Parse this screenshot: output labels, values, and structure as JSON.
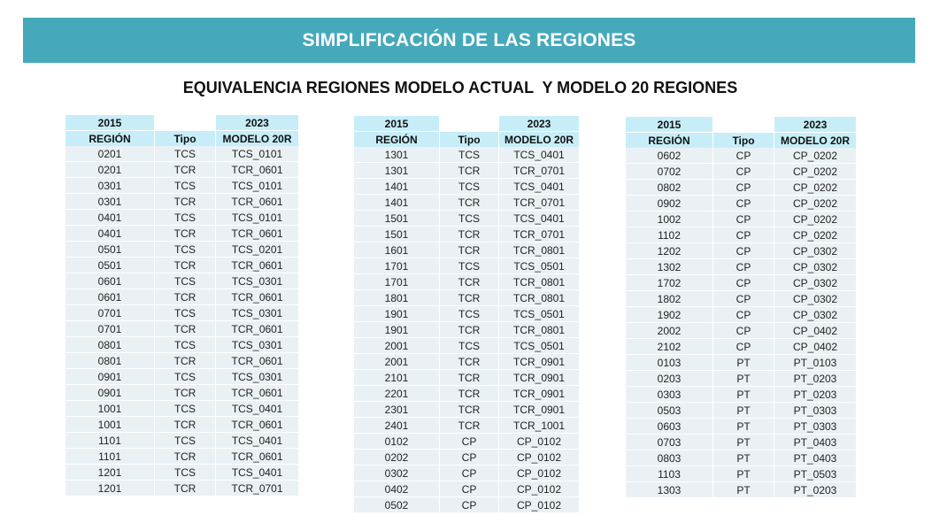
{
  "header": {
    "title": "SIMPLIFICACIÓN DE LAS REGIONES"
  },
  "subtitle": "EQUIVALENCIA REGIONES MODELO ACTUAL  Y MODELO 20 REGIONES",
  "columns": {
    "year_left": "2015",
    "year_right": "2023",
    "region": "REGIÓN",
    "tipo": "Tipo",
    "modelo": "MODELO 20R"
  },
  "tables": [
    {
      "rows": [
        [
          "0201",
          "TCS",
          "TCS_0101"
        ],
        [
          "0201",
          "TCR",
          "TCR_0601"
        ],
        [
          "0301",
          "TCS",
          "TCS_0101"
        ],
        [
          "0301",
          "TCR",
          "TCR_0601"
        ],
        [
          "0401",
          "TCS",
          "TCS_0101"
        ],
        [
          "0401",
          "TCR",
          "TCR_0601"
        ],
        [
          "0501",
          "TCS",
          "TCS_0201"
        ],
        [
          "0501",
          "TCR",
          "TCR_0601"
        ],
        [
          "0601",
          "TCS",
          "TCS_0301"
        ],
        [
          "0601",
          "TCR",
          "TCR_0601"
        ],
        [
          "0701",
          "TCS",
          "TCS_0301"
        ],
        [
          "0701",
          "TCR",
          "TCR_0601"
        ],
        [
          "0801",
          "TCS",
          "TCS_0301"
        ],
        [
          "0801",
          "TCR",
          "TCR_0601"
        ],
        [
          "0901",
          "TCS",
          "TCS_0301"
        ],
        [
          "0901",
          "TCR",
          "TCR_0601"
        ],
        [
          "1001",
          "TCS",
          "TCS_0401"
        ],
        [
          "1001",
          "TCR",
          "TCR_0601"
        ],
        [
          "1101",
          "TCS",
          "TCS_0401"
        ],
        [
          "1101",
          "TCR",
          "TCR_0601"
        ],
        [
          "1201",
          "TCS",
          "TCS_0401"
        ],
        [
          "1201",
          "TCR",
          "TCR_0701"
        ]
      ]
    },
    {
      "rows": [
        [
          "1301",
          "TCS",
          "TCS_0401"
        ],
        [
          "1301",
          "TCR",
          "TCR_0701"
        ],
        [
          "1401",
          "TCS",
          "TCS_0401"
        ],
        [
          "1401",
          "TCR",
          "TCR_0701"
        ],
        [
          "1501",
          "TCS",
          "TCS_0401"
        ],
        [
          "1501",
          "TCR",
          "TCR_0701"
        ],
        [
          "1601",
          "TCR",
          "TCR_0801"
        ],
        [
          "1701",
          "TCS",
          "TCS_0501"
        ],
        [
          "1701",
          "TCR",
          "TCR_0801"
        ],
        [
          "1801",
          "TCR",
          "TCR_0801"
        ],
        [
          "1901",
          "TCS",
          "TCS_0501"
        ],
        [
          "1901",
          "TCR",
          "TCR_0801"
        ],
        [
          "2001",
          "TCS",
          "TCS_0501"
        ],
        [
          "2001",
          "TCR",
          "TCR_0901"
        ],
        [
          "2101",
          "TCR",
          "TCR_0901"
        ],
        [
          "2201",
          "TCR",
          "TCR_0901"
        ],
        [
          "2301",
          "TCR",
          "TCR_0901"
        ],
        [
          "2401",
          "TCR",
          "TCR_1001"
        ],
        [
          "0102",
          "CP",
          "CP_0102"
        ],
        [
          "0202",
          "CP",
          "CP_0102"
        ],
        [
          "0302",
          "CP",
          "CP_0102"
        ],
        [
          "0402",
          "CP",
          "CP_0102"
        ],
        [
          "0502",
          "CP",
          "CP_0102"
        ]
      ]
    },
    {
      "rows": [
        [
          "0602",
          "CP",
          "CP_0202"
        ],
        [
          "0702",
          "CP",
          "CP_0202"
        ],
        [
          "0802",
          "CP",
          "CP_0202"
        ],
        [
          "0902",
          "CP",
          "CP_0202"
        ],
        [
          "1002",
          "CP",
          "CP_0202"
        ],
        [
          "1102",
          "CP",
          "CP_0202"
        ],
        [
          "1202",
          "CP",
          "CP_0302"
        ],
        [
          "1302",
          "CP",
          "CP_0302"
        ],
        [
          "1702",
          "CP",
          "CP_0302"
        ],
        [
          "1802",
          "CP",
          "CP_0302"
        ],
        [
          "1902",
          "CP",
          "CP_0302"
        ],
        [
          "2002",
          "CP",
          "CP_0402"
        ],
        [
          "2102",
          "CP",
          "CP_0402"
        ],
        [
          "0103",
          "PT",
          "PT_0103"
        ],
        [
          "0203",
          "PT",
          "PT_0203"
        ],
        [
          "0303",
          "PT",
          "PT_0203"
        ],
        [
          "0503",
          "PT",
          "PT_0303"
        ],
        [
          "0603",
          "PT",
          "PT_0303"
        ],
        [
          "0703",
          "PT",
          "PT_0403"
        ],
        [
          "0803",
          "PT",
          "PT_0403"
        ],
        [
          "1103",
          "PT",
          "PT_0503"
        ],
        [
          "1303",
          "PT",
          "PT_0203"
        ]
      ]
    }
  ]
}
